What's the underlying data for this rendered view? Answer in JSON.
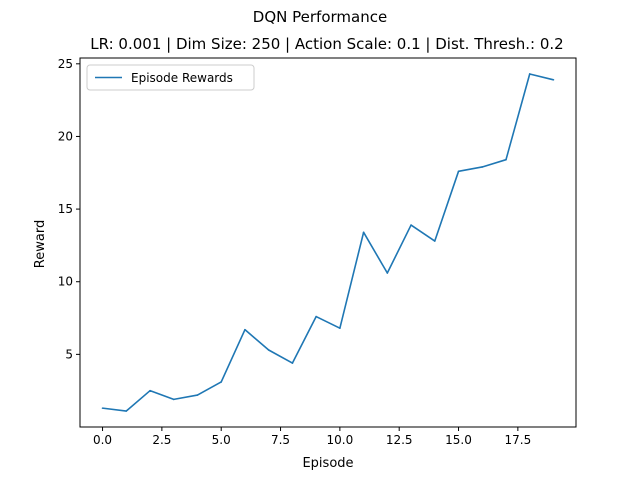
{
  "chart_data": {
    "type": "line",
    "title": "DQN Performance",
    "subtitle": "LR: 0.001 | Dim Size: 250 | Action Scale: 0.1 | Dist. Thresh.: 0.2",
    "xlabel": "Episode",
    "ylabel": "Reward",
    "xlim": [
      -0.95,
      19.95
    ],
    "ylim": [
      0.0,
      25.4
    ],
    "xticks": [
      0.0,
      2.5,
      5.0,
      7.5,
      10.0,
      12.5,
      15.0,
      17.5
    ],
    "xtick_labels": [
      "0.0",
      "2.5",
      "5.0",
      "7.5",
      "10.0",
      "12.5",
      "15.0",
      "17.5"
    ],
    "yticks": [
      5,
      10,
      15,
      20,
      25
    ],
    "ytick_labels": [
      "5",
      "10",
      "15",
      "20",
      "25"
    ],
    "grid": false,
    "legend": {
      "position": "top-left",
      "entries": [
        "Episode Rewards"
      ]
    },
    "series": [
      {
        "name": "Episode Rewards",
        "color": "#1f77b4",
        "x": [
          0,
          1,
          2,
          3,
          4,
          5,
          6,
          7,
          8,
          9,
          10,
          11,
          12,
          13,
          14,
          15,
          16,
          17,
          18,
          19
        ],
        "values": [
          1.3,
          1.1,
          2.5,
          1.9,
          2.2,
          3.1,
          6.7,
          5.3,
          4.4,
          7.6,
          6.8,
          13.4,
          10.6,
          13.9,
          12.8,
          17.6,
          17.9,
          18.4,
          24.3,
          23.9
        ]
      }
    ]
  }
}
